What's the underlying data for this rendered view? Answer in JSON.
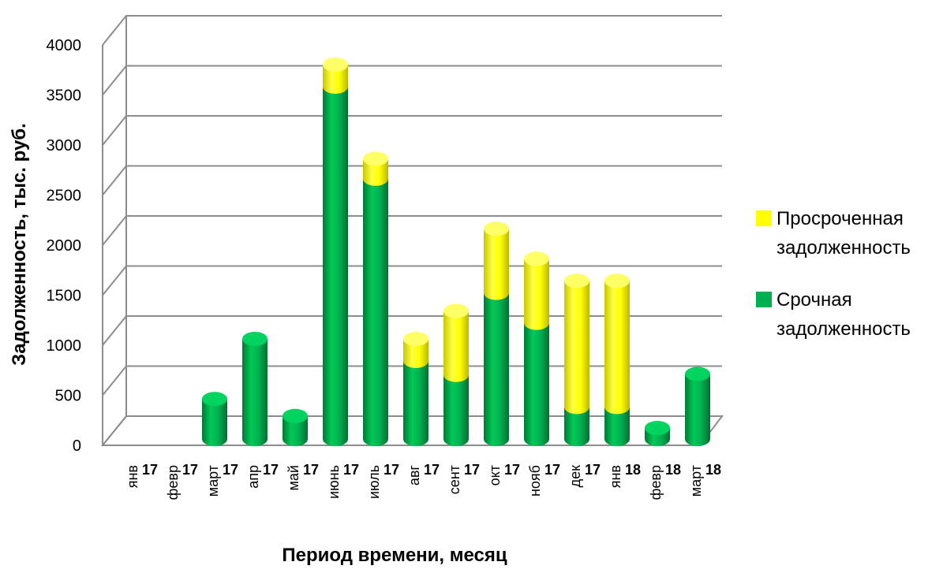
{
  "chart_data": {
    "type": "bar",
    "stacked": true,
    "style": "3d-cylinder",
    "xlabel": "Период времени, месяц",
    "ylabel": "Задолженность, тыс. руб.",
    "ylim": [
      0,
      4000
    ],
    "yticks": [
      0,
      500,
      1000,
      1500,
      2000,
      2500,
      3000,
      3500,
      4000
    ],
    "grid": true,
    "legend_position": "right",
    "categories": [
      {
        "month": "янв",
        "year": "17"
      },
      {
        "month": "февр",
        "year": "17"
      },
      {
        "month": "март",
        "year": "17"
      },
      {
        "month": "апр",
        "year": "17"
      },
      {
        "month": "май",
        "year": "17"
      },
      {
        "month": "июнь",
        "year": "17"
      },
      {
        "month": "июль",
        "year": "17"
      },
      {
        "month": "авг",
        "year": "17"
      },
      {
        "month": "сент",
        "year": "17"
      },
      {
        "month": "окт",
        "year": "17"
      },
      {
        "month": "нояб",
        "year": "17"
      },
      {
        "month": "дек",
        "year": "17"
      },
      {
        "month": "янв",
        "year": "18"
      },
      {
        "month": "февр",
        "year": "18"
      },
      {
        "month": "март",
        "year": "18"
      }
    ],
    "series": [
      {
        "name": "Срочная задолженность",
        "legend_lines": [
          "Срочная",
          "задолженность"
        ],
        "color": "#00B050",
        "values": [
          0,
          0,
          400,
          1000,
          230,
          3520,
          2600,
          780,
          640,
          1460,
          1160,
          320,
          320,
          110,
          650
        ]
      },
      {
        "name": "Просроченная задолженность",
        "legend_lines": [
          "Просроченная",
          "задолженность"
        ],
        "color": "#FFFF00",
        "values": [
          0,
          0,
          0,
          0,
          0,
          220,
          200,
          220,
          640,
          640,
          640,
          1260,
          1260,
          0,
          0
        ]
      }
    ]
  }
}
